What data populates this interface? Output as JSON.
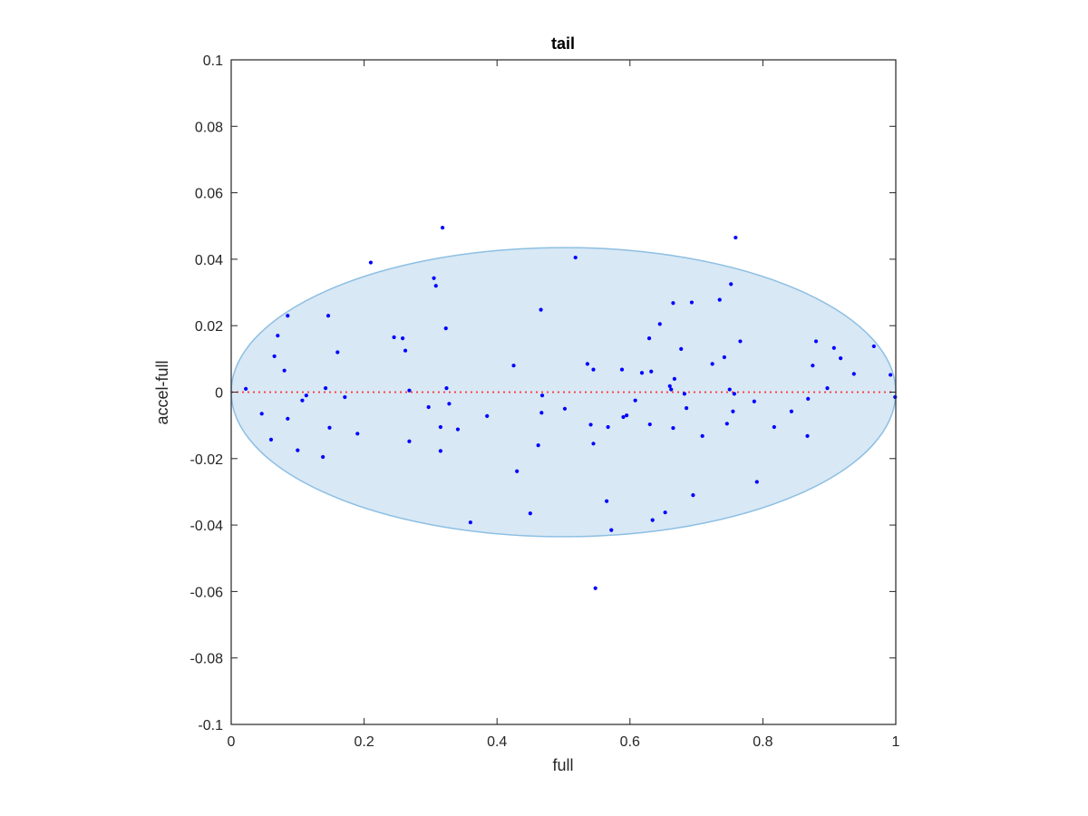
{
  "chart_data": {
    "type": "scatter",
    "title": "tail",
    "xlabel": "full",
    "ylabel": "accel-full",
    "xlim": [
      0,
      1
    ],
    "ylim": [
      -0.1,
      0.1
    ],
    "xticks": [
      0,
      0.2,
      0.4,
      0.6,
      0.8,
      1
    ],
    "xtick_labels": [
      "0",
      "0.2",
      "0.4",
      "0.6",
      "0.8",
      "1"
    ],
    "yticks": [
      -0.1,
      -0.08,
      -0.06,
      -0.04,
      -0.02,
      0,
      0.02,
      0.04,
      0.06,
      0.08,
      0.1
    ],
    "ytick_labels": [
      "-0.1",
      "-0.08",
      "-0.06",
      "-0.04",
      "-0.02",
      "0",
      "0.02",
      "0.04",
      "0.06",
      "0.08",
      "0.1"
    ],
    "grid": false,
    "reference_line": {
      "y": 0,
      "style": "dotted",
      "color": "#ff3333"
    },
    "ellipse": {
      "cx": 0.5,
      "cy": 0.0,
      "rx": 0.5,
      "ry": 0.0435,
      "fill": "#d8e8f5",
      "stroke": "#8dbfe3"
    },
    "point_color": "#0000ff",
    "points": [
      [
        0.022,
        0.001
      ],
      [
        0.046,
        -0.0065
      ],
      [
        0.06,
        -0.0143
      ],
      [
        0.065,
        0.0108
      ],
      [
        0.07,
        0.017
      ],
      [
        0.08,
        0.0065
      ],
      [
        0.085,
        -0.008
      ],
      [
        0.085,
        0.023
      ],
      [
        0.1,
        -0.0175
      ],
      [
        0.107,
        -0.0025
      ],
      [
        0.113,
        -0.001
      ],
      [
        0.138,
        -0.0195
      ],
      [
        0.142,
        0.0012
      ],
      [
        0.146,
        0.023
      ],
      [
        0.148,
        -0.0107
      ],
      [
        0.16,
        0.012
      ],
      [
        0.171,
        -0.0015
      ],
      [
        0.19,
        -0.0125
      ],
      [
        0.21,
        0.039
      ],
      [
        0.245,
        0.0165
      ],
      [
        0.258,
        0.0162
      ],
      [
        0.262,
        0.0125
      ],
      [
        0.268,
        0.0005
      ],
      [
        0.268,
        -0.0148
      ],
      [
        0.297,
        -0.0045
      ],
      [
        0.305,
        0.0343
      ],
      [
        0.308,
        0.032
      ],
      [
        0.315,
        -0.0105
      ],
      [
        0.315,
        -0.0177
      ],
      [
        0.318,
        0.0495
      ],
      [
        0.323,
        0.0192
      ],
      [
        0.324,
        0.0012
      ],
      [
        0.328,
        -0.0035
      ],
      [
        0.341,
        -0.0112
      ],
      [
        0.36,
        -0.0392
      ],
      [
        0.385,
        -0.0072
      ],
      [
        0.425,
        0.008
      ],
      [
        0.43,
        -0.0238
      ],
      [
        0.45,
        -0.0365
      ],
      [
        0.462,
        -0.016
      ],
      [
        0.466,
        0.0248
      ],
      [
        0.467,
        -0.0062
      ],
      [
        0.468,
        -0.001
      ],
      [
        0.502,
        -0.005
      ],
      [
        0.518,
        0.0405
      ],
      [
        0.536,
        0.0085
      ],
      [
        0.541,
        -0.0098
      ],
      [
        0.545,
        0.0068
      ],
      [
        0.545,
        -0.0155
      ],
      [
        0.548,
        -0.059
      ],
      [
        0.565,
        -0.0328
      ],
      [
        0.567,
        -0.0105
      ],
      [
        0.572,
        -0.0415
      ],
      [
        0.588,
        0.0068
      ],
      [
        0.59,
        -0.0075
      ],
      [
        0.595,
        -0.007
      ],
      [
        0.608,
        -0.0025
      ],
      [
        0.618,
        0.0058
      ],
      [
        0.629,
        0.0162
      ],
      [
        0.63,
        -0.0097
      ],
      [
        0.632,
        0.0062
      ],
      [
        0.634,
        -0.0385
      ],
      [
        0.645,
        0.0205
      ],
      [
        0.653,
        -0.0362
      ],
      [
        0.66,
        0.0018
      ],
      [
        0.662,
        0.0008
      ],
      [
        0.665,
        0.0268
      ],
      [
        0.665,
        -0.0108
      ],
      [
        0.667,
        0.004
      ],
      [
        0.677,
        0.013
      ],
      [
        0.682,
        -0.0005
      ],
      [
        0.685,
        -0.0048
      ],
      [
        0.693,
        0.027
      ],
      [
        0.695,
        -0.031
      ],
      [
        0.709,
        -0.0132
      ],
      [
        0.724,
        0.0085
      ],
      [
        0.735,
        0.0278
      ],
      [
        0.742,
        0.0105
      ],
      [
        0.746,
        -0.0095
      ],
      [
        0.75,
        0.0008
      ],
      [
        0.752,
        0.0325
      ],
      [
        0.755,
        -0.0058
      ],
      [
        0.757,
        -0.0005
      ],
      [
        0.759,
        0.0465
      ],
      [
        0.766,
        0.0153
      ],
      [
        0.787,
        -0.0028
      ],
      [
        0.791,
        -0.027
      ],
      [
        0.817,
        -0.0105
      ],
      [
        0.843,
        -0.0058
      ],
      [
        0.867,
        -0.0132
      ],
      [
        0.868,
        -0.002
      ],
      [
        0.875,
        0.008
      ],
      [
        0.88,
        0.0153
      ],
      [
        0.897,
        0.0012
      ],
      [
        0.907,
        0.0133
      ],
      [
        0.917,
        0.0102
      ],
      [
        0.937,
        0.0055
      ],
      [
        0.967,
        0.0138
      ],
      [
        0.992,
        0.0052
      ],
      [
        0.999,
        -0.0015
      ]
    ]
  }
}
